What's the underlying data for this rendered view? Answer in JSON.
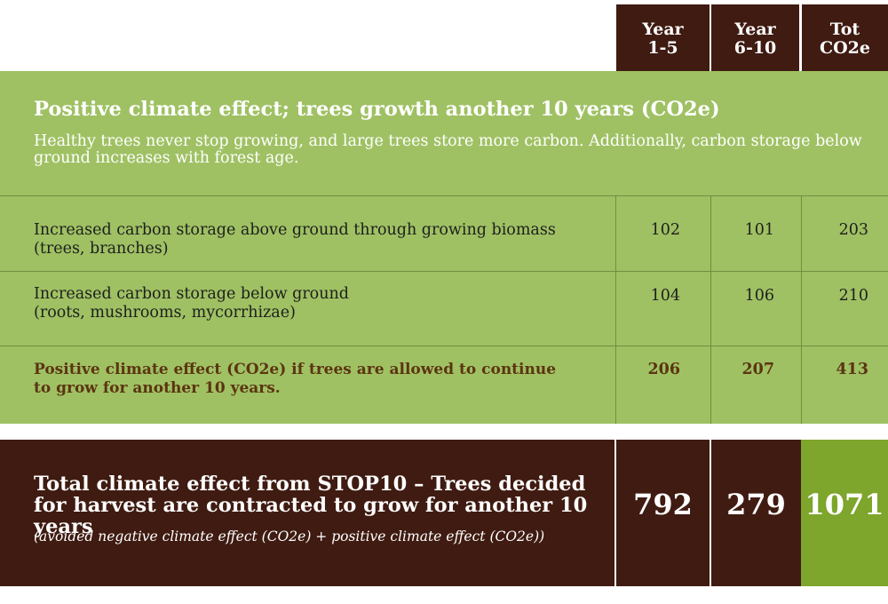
{
  "header": {
    "col1": [
      "Year",
      "1-5"
    ],
    "col2": [
      "Year",
      "6-10"
    ],
    "col3": [
      "Tot",
      "CO2e"
    ]
  },
  "positive": {
    "title": "Positive climate effect; trees growth another 10 years (CO2e)",
    "description": "Healthy trees never stop growing, and large trees store more carbon. Additionally, carbon storage below ground increases with forest age.",
    "rows": [
      {
        "label_line1": "Increased carbon storage above ground through growing biomass",
        "label_line2": "(trees, branches)",
        "y1_5": "102",
        "y6_10": "101",
        "total": "203"
      },
      {
        "label_line1": "Increased carbon storage below ground",
        "label_line2": "(roots, mushrooms, mycorrhizae)",
        "y1_5": "104",
        "y6_10": "106",
        "total": "210"
      }
    ],
    "summary": {
      "label_line1": "Positive climate effect (CO2e) if trees are allowed to continue",
      "label_line2": "to grow for another 10 years.",
      "y1_5": "206",
      "y6_10": "207",
      "total": "413"
    }
  },
  "total": {
    "title": "Total climate effect from STOP10 – Trees decided for harvest are contracted to grow for another 10 years",
    "subtitle": "(avoided negative climate effect (CO2e) + positive climate effect (CO2e))",
    "y1_5": "792",
    "y6_10": "279",
    "total": "1071"
  },
  "colors": {
    "brown": "#3f1b11",
    "green": "#9fc163",
    "dark_green": "#7ea52c",
    "summary_text": "#5b3411"
  }
}
